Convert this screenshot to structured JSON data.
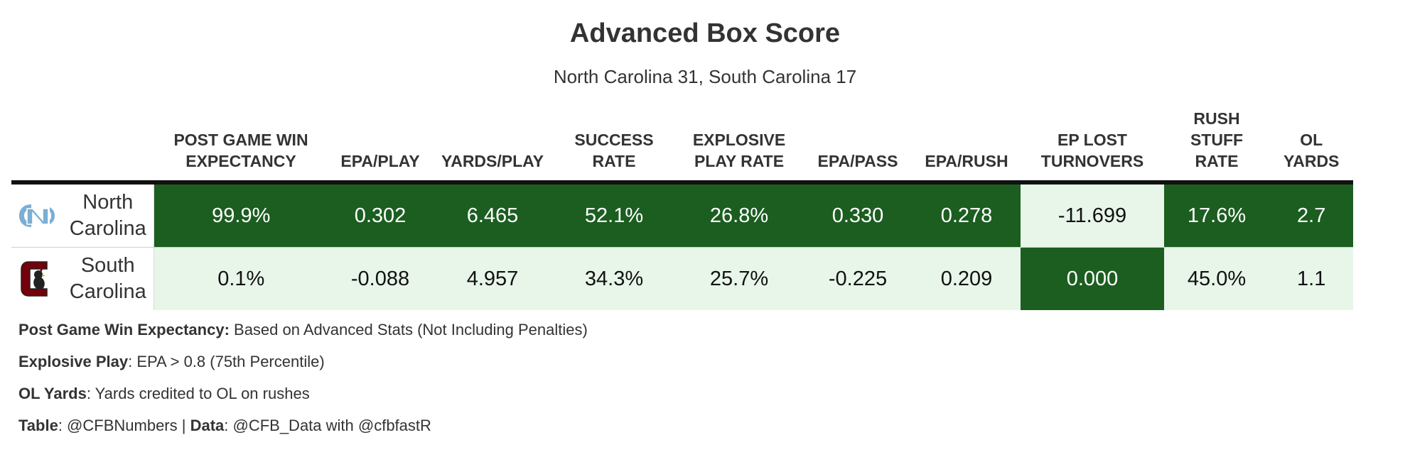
{
  "title": "Advanced Box Score",
  "subtitle": "North Carolina 31, South Carolina 17",
  "colors": {
    "dark_green": "#1b5e20",
    "light_green": "#e8f5e9",
    "dark_text": "#ffffff",
    "light_text": "#111111",
    "unc_blue": "#7bafd4",
    "usc_garnet": "#73000a"
  },
  "chart_data": {
    "type": "table",
    "columns": [
      "POST GAME WIN EXPECTANCY",
      "EPA/PLAY",
      "YARDS/PLAY",
      "SUCCESS RATE",
      "EXPLOSIVE PLAY RATE",
      "EPA/PASS",
      "EPA/RUSH",
      "EP LOST TURNOVERS",
      "RUSH STUFF RATE",
      "OL YARDS"
    ],
    "rows": [
      {
        "team": "North Carolina",
        "logo": "unc-logo-icon",
        "values": [
          "99.9%",
          "0.302",
          "6.465",
          "52.1%",
          "26.8%",
          "0.330",
          "0.278",
          "-11.699",
          "17.6%",
          "2.7"
        ],
        "shades": [
          "dark",
          "dark",
          "dark",
          "dark",
          "dark",
          "dark",
          "dark",
          "light",
          "dark",
          "dark"
        ]
      },
      {
        "team": "South Carolina",
        "logo": "south-carolina-gamecock-icon",
        "values": [
          "0.1%",
          "-0.088",
          "4.957",
          "34.3%",
          "25.7%",
          "-0.225",
          "0.209",
          "0.000",
          "45.0%",
          "1.1"
        ],
        "shades": [
          "light",
          "light",
          "light",
          "light",
          "light",
          "light",
          "light",
          "dark",
          "light",
          "light"
        ]
      }
    ]
  },
  "notes": {
    "win_exp_label": "Post Game Win Expectancy:",
    "win_exp_text": " Based on Advanced Stats (Not Including Penalties)",
    "explosive_label": "Explosive Play",
    "explosive_text": ": EPA > 0.8 (75th Percentile)",
    "ol_label": "OL Yards",
    "ol_text": ": Yards credited to OL on rushes",
    "table_label": "Table",
    "table_text": ": @CFBNumbers | ",
    "data_label": "Data",
    "data_text": ": @CFB_Data with @cfbfastR"
  }
}
